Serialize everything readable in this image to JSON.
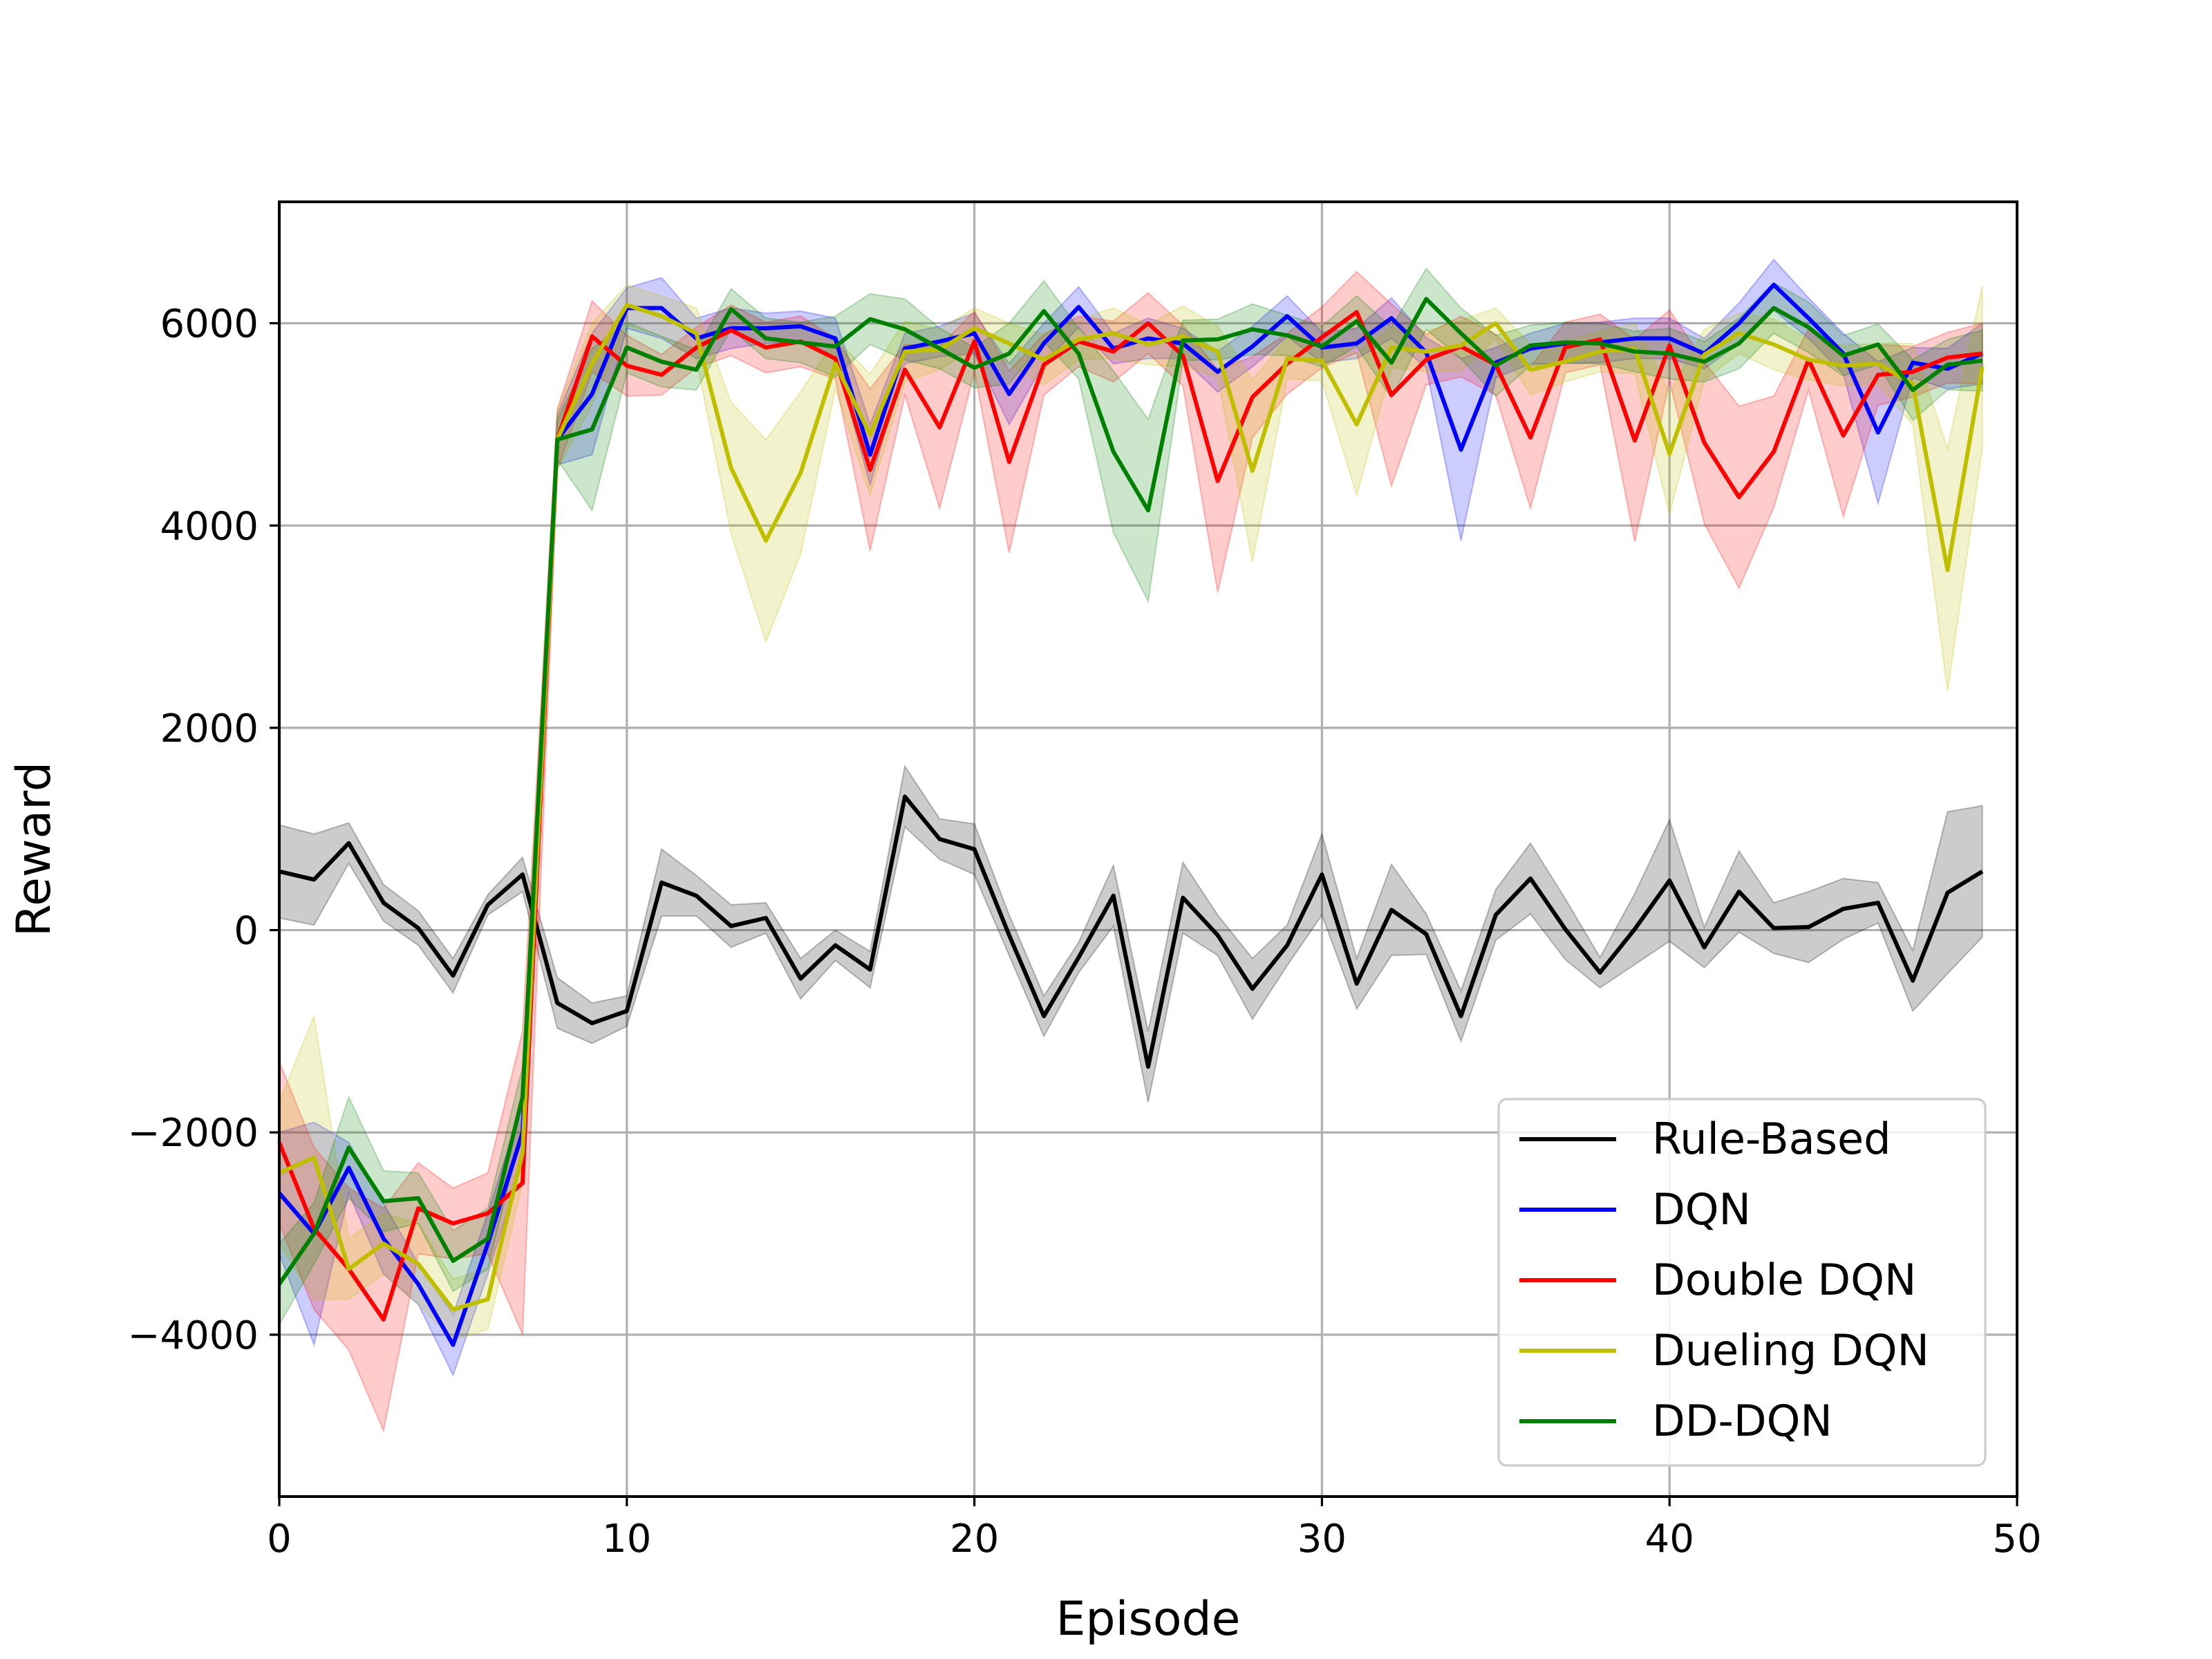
{
  "chart_data": {
    "type": "line",
    "title": "",
    "xlabel": "Episode",
    "ylabel": "Reward",
    "xlim": [
      0,
      50
    ],
    "ylim": [
      -5600,
      7200
    ],
    "x_ticks": [
      0,
      10,
      20,
      30,
      40,
      50
    ],
    "y_ticks": [
      -4000,
      -2000,
      0,
      2000,
      4000,
      6000
    ],
    "x_tick_labels": [
      "0",
      "10",
      "20",
      "30",
      "40",
      "50"
    ],
    "y_tick_labels": [
      "−4000",
      "−2000",
      "0",
      "2000",
      "4000",
      "6000"
    ],
    "grid": true,
    "legend_position": "lower-right",
    "x": [
      0,
      1,
      2,
      3,
      4,
      5,
      6,
      7,
      8,
      9,
      10,
      11,
      12,
      13,
      14,
      15,
      16,
      17,
      18,
      19,
      20,
      21,
      22,
      23,
      24,
      25,
      26,
      27,
      28,
      29,
      30,
      31,
      32,
      33,
      34,
      35,
      36,
      37,
      38,
      39,
      40,
      41,
      42,
      43,
      44,
      45,
      46,
      47,
      48,
      49
    ],
    "series": [
      {
        "name": "Rule-Based",
        "color": "#000000",
        "values": [
          580,
          500,
          860,
          270,
          20,
          -450,
          250,
          550,
          -720,
          -920,
          -800,
          470,
          340,
          40,
          120,
          -480,
          -150,
          -390,
          1320,
          900,
          800,
          -50,
          -850,
          -270,
          340,
          -1350,
          320,
          -50,
          -580,
          -150,
          550,
          -530,
          200,
          -40,
          -850,
          150,
          510,
          10,
          -420,
          10,
          490,
          -170,
          380,
          20,
          30,
          210,
          270,
          -500,
          370,
          580
        ],
        "band": [
          460,
          450,
          200,
          180,
          170,
          170,
          100,
          170,
          250,
          200,
          150,
          330,
          200,
          210,
          150,
          200,
          150,
          180,
          300,
          200,
          250,
          200,
          200,
          150,
          300,
          350,
          350,
          200,
          300,
          200,
          400,
          250,
          450,
          200,
          250,
          250,
          350,
          300,
          150,
          350,
          600,
          200,
          400,
          250,
          350,
          300,
          200,
          300,
          800,
          650
        ]
      },
      {
        "name": "DQN",
        "color": "#0000ff",
        "values": [
          -2600,
          -3000,
          -2350,
          -3050,
          -3500,
          -4100,
          -3100,
          -2000,
          4850,
          5300,
          6150,
          6150,
          5850,
          5950,
          5950,
          5970,
          5850,
          4700,
          5750,
          5820,
          5900,
          5300,
          5800,
          6160,
          5750,
          5850,
          5800,
          5520,
          5770,
          6070,
          5760,
          5800,
          6050,
          5710,
          4750,
          5610,
          5750,
          5800,
          5810,
          5850,
          5850,
          5700,
          6000,
          6380,
          6050,
          5700,
          4920,
          5610,
          5550,
          5700
        ],
        "band": [
          600,
          1100,
          250,
          350,
          200,
          300,
          300,
          300,
          250,
          600,
          200,
          300,
          200,
          200,
          150,
          150,
          200,
          300,
          150,
          150,
          200,
          300,
          200,
          200,
          150,
          200,
          150,
          200,
          200,
          200,
          150,
          150,
          200,
          150,
          900,
          150,
          150,
          200,
          200,
          200,
          200,
          150,
          200,
          250,
          200,
          200,
          700,
          150,
          200,
          300
        ]
      },
      {
        "name": "Double DQN",
        "color": "#ff0000",
        "values": [
          -2100,
          -2950,
          -3350,
          -3850,
          -2750,
          -2900,
          -2800,
          -2500,
          4850,
          5870,
          5580,
          5490,
          5760,
          5930,
          5760,
          5820,
          5650,
          4550,
          5540,
          4970,
          5820,
          4630,
          5590,
          5820,
          5720,
          6000,
          5680,
          4440,
          5270,
          5600,
          5860,
          6110,
          5290,
          5640,
          5770,
          5590,
          4870,
          5760,
          5840,
          4840,
          5780,
          4820,
          4280,
          4730,
          5640,
          4890,
          5490,
          5520,
          5660,
          5700
        ],
        "band": [
          800,
          800,
          800,
          1100,
          450,
          350,
          400,
          1500,
          300,
          350,
          300,
          200,
          200,
          250,
          250,
          250,
          200,
          800,
          250,
          800,
          300,
          900,
          300,
          250,
          300,
          300,
          300,
          1100,
          400,
          300,
          300,
          400,
          900,
          250,
          300,
          300,
          700,
          250,
          250,
          1000,
          350,
          800,
          900,
          550,
          300,
          800,
          300,
          250,
          250,
          300
        ]
      },
      {
        "name": "Dueling DQN",
        "color": "#bfbf00",
        "values": [
          -2400,
          -2250,
          -3350,
          -3100,
          -3300,
          -3750,
          -3650,
          -2200,
          4850,
          5600,
          6180,
          6070,
          5900,
          4570,
          3850,
          4520,
          5600,
          4900,
          5720,
          5740,
          5950,
          5800,
          5640,
          5840,
          5900,
          5790,
          5870,
          5720,
          4540,
          5650,
          5630,
          5000,
          5760,
          5720,
          5780,
          6000,
          5540,
          5620,
          5720,
          5750,
          4710,
          5690,
          5900,
          5790,
          5640,
          5580,
          5600,
          5400,
          3560,
          5570
        ],
        "band": [
          700,
          1400,
          300,
          300,
          400,
          300,
          300,
          300,
          300,
          400,
          200,
          200,
          250,
          650,
          1000,
          800,
          250,
          600,
          300,
          200,
          200,
          200,
          250,
          200,
          250,
          200,
          300,
          250,
          900,
          200,
          200,
          700,
          200,
          200,
          250,
          150,
          250,
          200,
          200,
          250,
          600,
          250,
          200,
          250,
          200,
          200,
          200,
          400,
          1200,
          800
        ]
      },
      {
        "name": "DD-DQN",
        "color": "#008000",
        "values": [
          -3500,
          -3000,
          -2150,
          -2680,
          -2650,
          -3270,
          -3050,
          -1650,
          4850,
          4950,
          5760,
          5620,
          5540,
          6140,
          5850,
          5810,
          5770,
          6040,
          5940,
          5750,
          5560,
          5700,
          6120,
          5700,
          4730,
          4150,
          5830,
          5840,
          5940,
          5880,
          5770,
          6020,
          5610,
          6240,
          5900,
          5580,
          5780,
          5810,
          5800,
          5720,
          5700,
          5620,
          5800,
          6150,
          5960,
          5680,
          5790,
          5340,
          5590,
          5630
        ],
        "band": [
          400,
          300,
          500,
          300,
          250,
          300,
          300,
          300,
          200,
          800,
          250,
          250,
          200,
          200,
          200,
          200,
          300,
          250,
          300,
          200,
          200,
          300,
          300,
          250,
          800,
          900,
          200,
          200,
          250,
          200,
          200,
          250,
          350,
          300,
          250,
          300,
          200,
          200,
          200,
          200,
          250,
          200,
          250,
          250,
          250,
          200,
          200,
          300,
          250,
          300
        ]
      }
    ]
  }
}
